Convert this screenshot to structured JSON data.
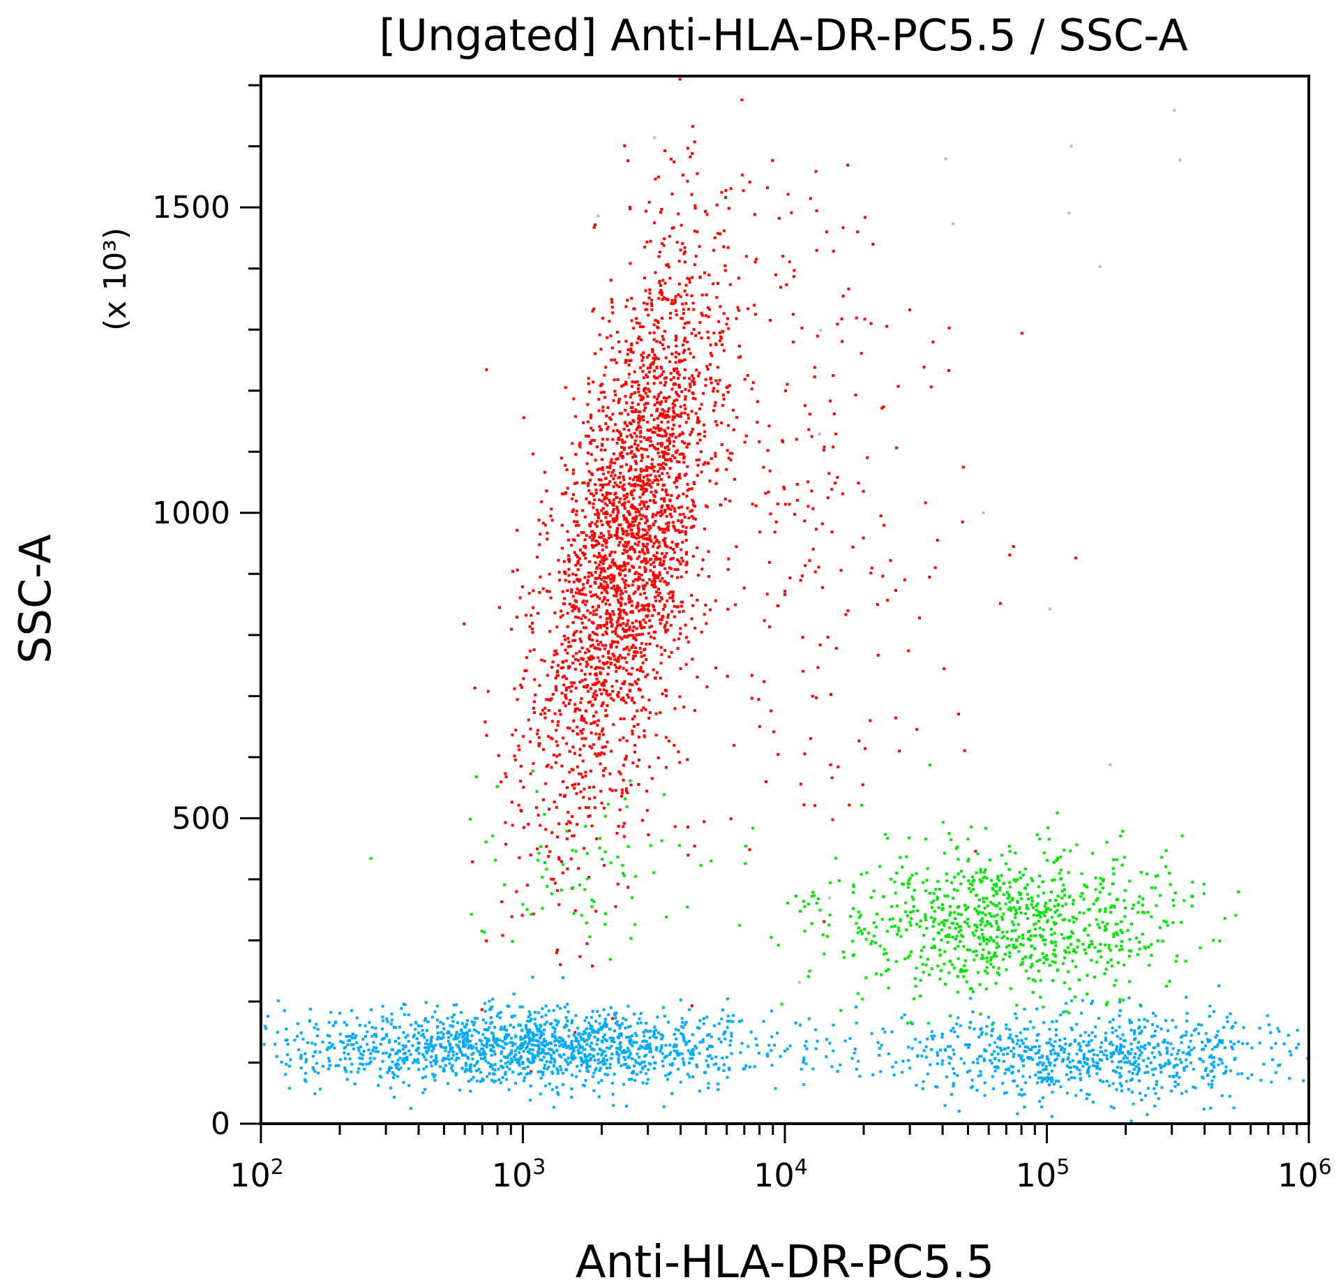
{
  "chart_data": {
    "type": "scatter",
    "title": "[Ungated] Anti-HLA-DR-PC5.5 / SSC-A",
    "xlabel": "Anti-HLA-DR-PC5.5",
    "ylabel": "SSC-A",
    "yunit": "(x 10³)",
    "xscale": "log",
    "xlim": [
      100,
      1000000
    ],
    "ylim": [
      0,
      1715
    ],
    "grid": false,
    "x_ticks": [
      {
        "value": 100,
        "base": "10",
        "exp": "2"
      },
      {
        "value": 1000,
        "base": "10",
        "exp": "3"
      },
      {
        "value": 10000,
        "base": "10",
        "exp": "4"
      },
      {
        "value": 100000,
        "base": "10",
        "exp": "5"
      },
      {
        "value": 1000000,
        "base": "10",
        "exp": "6"
      }
    ],
    "y_ticks": [
      {
        "value": 0,
        "label": "0"
      },
      {
        "value": 500,
        "label": "500"
      },
      {
        "value": 1000,
        "label": "1000"
      },
      {
        "value": 1500,
        "label": "1500"
      }
    ],
    "populations": [
      {
        "color": "#ff0000",
        "x_center": 2500,
        "x_log_sd": 0.14,
        "y_center": 950,
        "y_sd": 230,
        "tilt_log_per_unit": 0.00045,
        "approx_points": 2600
      },
      {
        "color": "#ff0000",
        "x_center": 9000,
        "x_log_sd": 0.35,
        "y_center": 1050,
        "y_sd": 300,
        "tilt_log_per_unit": 0,
        "approx_points": 300
      },
      {
        "color": "#00e600",
        "x_center": 70000,
        "x_log_sd": 0.32,
        "y_center": 330,
        "y_sd": 60,
        "tilt_log_per_unit": 0,
        "approx_points": 900
      },
      {
        "color": "#00e600",
        "x_center": 2000,
        "x_log_sd": 0.3,
        "y_center": 420,
        "y_sd": 70,
        "tilt_log_per_unit": 0,
        "approx_points": 80
      },
      {
        "color": "#00aaff",
        "x_center": 1000,
        "x_log_sd": 0.45,
        "y_center": 125,
        "y_sd": 32,
        "tilt_log_per_unit": 0,
        "approx_points": 1500
      },
      {
        "color": "#00aaff",
        "x_center": 150000,
        "x_log_sd": 0.4,
        "y_center": 110,
        "y_sd": 35,
        "tilt_log_per_unit": 0,
        "approx_points": 800
      },
      {
        "color": "#bbbbbb",
        "x_center": 60000,
        "x_log_sd": 0.7,
        "y_center": 1100,
        "y_sd": 400,
        "tilt_log_per_unit": 0,
        "approx_points": 20
      }
    ]
  }
}
